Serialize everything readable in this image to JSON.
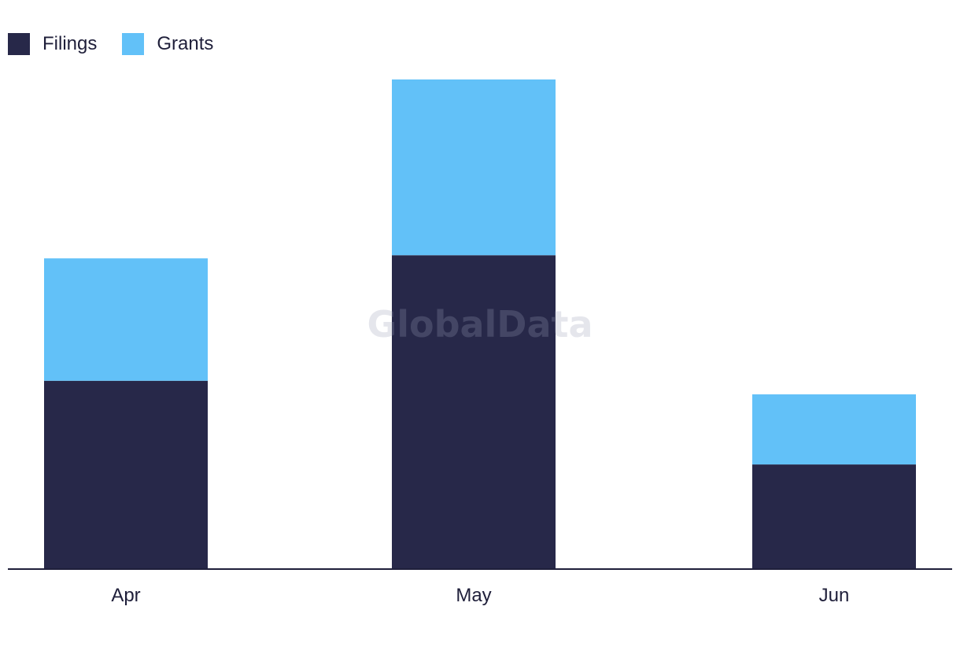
{
  "colors": {
    "filings": "#272849",
    "grants": "#62c1f8",
    "axis": "#1f1f3a",
    "text": "#1f1f3a"
  },
  "watermark": "GlobalData",
  "chart_data": {
    "type": "bar",
    "stacked": true,
    "categories": [
      "Apr",
      "May",
      "Jun"
    ],
    "series": [
      {
        "name": "Filings",
        "values": [
          18,
          30,
          10
        ]
      },
      {
        "name": "Grants",
        "values": [
          11.7,
          16.8,
          6.7
        ]
      }
    ],
    "title": "",
    "xlabel": "",
    "ylabel": "",
    "ylim": [
      0,
      48
    ],
    "grid": false,
    "legend": "top-left"
  }
}
